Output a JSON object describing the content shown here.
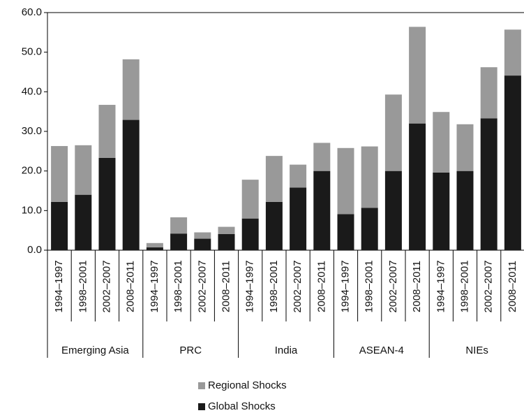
{
  "chart_data": {
    "type": "stacked-bar",
    "categories": [
      "1994–1997",
      "1998–2001",
      "2002–2007",
      "2008–2011",
      "1994–1997",
      "1998–2001",
      "2002–2007",
      "2008–2011",
      "1994–1997",
      "1998–2001",
      "2002–2007",
      "2008–2011",
      "1994–1997",
      "1998–2001",
      "2002–2007",
      "2008–2011",
      "1994–1997",
      "1998–2001",
      "2002–2007",
      "2008–2011"
    ],
    "groups": [
      "Emerging Asia",
      "PRC",
      "India",
      "ASEAN-4",
      "NIEs"
    ],
    "series": [
      {
        "name": "Global Shocks",
        "color": "#1a1a1a",
        "values": [
          12.2,
          14.0,
          23.3,
          32.9,
          0.7,
          4.2,
          2.9,
          4.1,
          8.0,
          12.2,
          15.8,
          20.0,
          9.1,
          10.7,
          20.0,
          32.0,
          19.6,
          20.0,
          33.3,
          44.1
        ]
      },
      {
        "name": "Regional Shocks",
        "color": "#999999",
        "values": [
          14.1,
          12.5,
          13.4,
          15.3,
          1.1,
          4.1,
          1.6,
          1.8,
          9.8,
          11.6,
          5.8,
          7.1,
          16.7,
          15.5,
          19.3,
          24.4,
          15.3,
          11.8,
          12.9,
          11.6
        ]
      }
    ],
    "ylim": [
      0,
      60
    ],
    "yticks": [
      {
        "value": 0,
        "label": "0.0"
      },
      {
        "value": 10,
        "label": "10.0"
      },
      {
        "value": 20,
        "label": "20.0"
      },
      {
        "value": 30,
        "label": "30.0"
      },
      {
        "value": 40,
        "label": "40.0"
      },
      {
        "value": 50,
        "label": "50.0"
      },
      {
        "value": 60,
        "label": "60.0"
      }
    ]
  }
}
